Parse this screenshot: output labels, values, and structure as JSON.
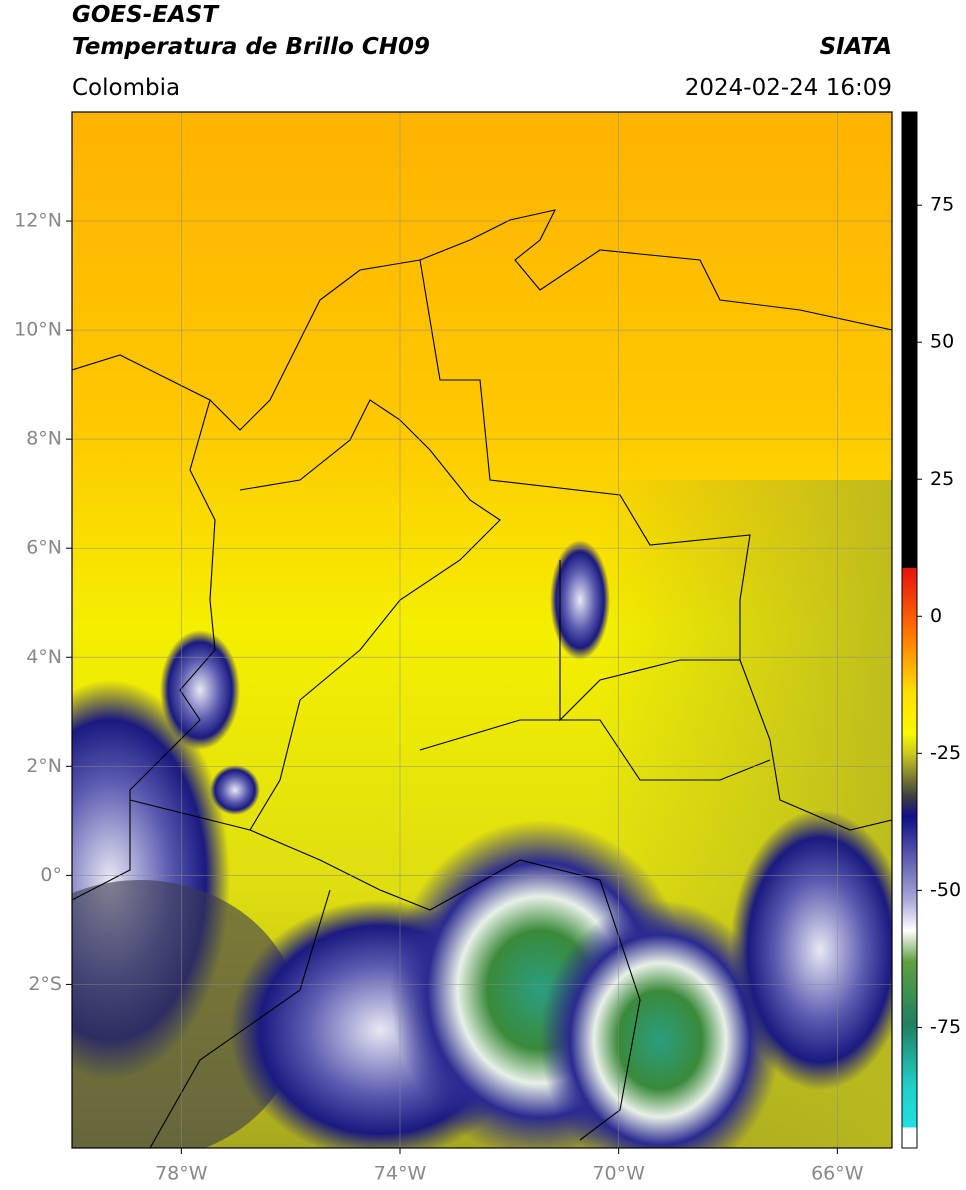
{
  "header": {
    "title": "GOES-EAST",
    "subtitle": "Temperatura de Brillo CH09",
    "source": "SIATA",
    "region": "Colombia",
    "datetime": "2024-02-24 16:09"
  },
  "map": {
    "xlim": [
      -80,
      -65
    ],
    "ylim": [
      -5,
      14
    ],
    "xticks": [
      {
        "value": -78,
        "label": "78°W"
      },
      {
        "value": -74,
        "label": "74°W"
      },
      {
        "value": -70,
        "label": "70°W"
      },
      {
        "value": -66,
        "label": "66°W"
      }
    ],
    "yticks": [
      {
        "value": 12,
        "label": "12°N"
      },
      {
        "value": 10,
        "label": "10°N"
      },
      {
        "value": 8,
        "label": "8°N"
      },
      {
        "value": 6,
        "label": "6°N"
      },
      {
        "value": 4,
        "label": "4°N"
      },
      {
        "value": 2,
        "label": "2°N"
      },
      {
        "value": 0,
        "label": "0°"
      },
      {
        "value": -2,
        "label": "2°S"
      }
    ],
    "grid": true
  },
  "colorbar": {
    "lim": [
      -97,
      92
    ],
    "ticks": [
      75,
      50,
      25,
      0,
      -25,
      -50,
      -75
    ]
  }
}
